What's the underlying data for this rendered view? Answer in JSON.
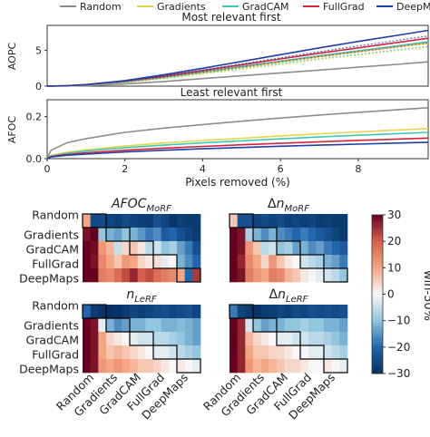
{
  "legend": {
    "entries": [
      {
        "name": "Random",
        "color": "#8c8c8c"
      },
      {
        "name": "Gradients",
        "color": "#e8d44d"
      },
      {
        "name": "GradCAM",
        "color": "#3ec8b8"
      },
      {
        "name": "FullGrad",
        "color": "#d6213a"
      },
      {
        "name": "DeepMaps",
        "color": "#1f3fa8"
      }
    ]
  },
  "colorbar": {
    "label": "win-50%",
    "ticks": [
      "30",
      "20",
      "10",
      "0",
      "−10",
      "−20",
      "−30"
    ],
    "range": [
      -30,
      30
    ],
    "colormap": "RdBu_r"
  },
  "chart_data": [
    {
      "type": "line",
      "title": "Most relevant first",
      "ylabel": "AOPC",
      "xlabel": "",
      "xlim": [
        0,
        9.8
      ],
      "ylim": [
        0,
        8.5
      ],
      "yticks": [
        "0",
        "5"
      ],
      "x": [
        0,
        0.5,
        1,
        2,
        3,
        4,
        5,
        6,
        7,
        8,
        9,
        9.8
      ],
      "series": [
        {
          "name": "Random",
          "values": [
            0,
            0.02,
            0.08,
            0.3,
            0.65,
            1.05,
            1.45,
            1.85,
            2.25,
            2.65,
            3.05,
            3.4
          ]
        },
        {
          "name": "Gradients",
          "values": [
            0,
            0.04,
            0.15,
            0.55,
            1.15,
            1.85,
            2.6,
            3.35,
            4.1,
            4.8,
            5.5,
            6.0
          ]
        },
        {
          "name": "GradCAM",
          "values": [
            0,
            0.05,
            0.17,
            0.6,
            1.25,
            2.0,
            2.75,
            3.5,
            4.25,
            4.95,
            5.65,
            6.2
          ]
        },
        {
          "name": "FullGrad",
          "values": [
            0,
            0.05,
            0.2,
            0.7,
            1.4,
            2.2,
            3.0,
            3.8,
            4.6,
            5.35,
            6.1,
            6.7
          ]
        },
        {
          "name": "DeepMaps",
          "values": [
            0,
            0.06,
            0.22,
            0.78,
            1.6,
            2.5,
            3.45,
            4.4,
            5.35,
            6.25,
            7.1,
            7.8
          ]
        }
      ]
    },
    {
      "type": "line",
      "title": "Least relevant first",
      "ylabel": "AFOC",
      "xlabel": "Pixels removed (%)",
      "xlim": [
        0,
        9.8
      ],
      "ylim": [
        0,
        0.28
      ],
      "xticks": [
        "0",
        "2",
        "4",
        "6",
        "8"
      ],
      "yticks": [
        "0.0",
        "0.2"
      ],
      "x": [
        0,
        0.1,
        0.5,
        1,
        2,
        3,
        4,
        5,
        6,
        7,
        8,
        9,
        9.8
      ],
      "series": [
        {
          "name": "Random",
          "values": [
            0,
            0.04,
            0.075,
            0.095,
            0.125,
            0.145,
            0.162,
            0.178,
            0.193,
            0.207,
            0.22,
            0.232,
            0.242
          ]
        },
        {
          "name": "Gradients",
          "values": [
            0,
            0.015,
            0.03,
            0.042,
            0.06,
            0.074,
            0.086,
            0.097,
            0.108,
            0.118,
            0.127,
            0.136,
            0.143
          ]
        },
        {
          "name": "GradCAM",
          "values": [
            0,
            0.013,
            0.026,
            0.036,
            0.052,
            0.064,
            0.075,
            0.085,
            0.094,
            0.103,
            0.111,
            0.119,
            0.125
          ]
        },
        {
          "name": "FullGrad",
          "values": [
            0,
            0.01,
            0.02,
            0.028,
            0.04,
            0.05,
            0.058,
            0.066,
            0.073,
            0.08,
            0.087,
            0.093,
            0.098
          ]
        },
        {
          "name": "DeepMaps",
          "values": [
            0,
            0.008,
            0.016,
            0.022,
            0.032,
            0.04,
            0.047,
            0.053,
            0.059,
            0.064,
            0.069,
            0.074,
            0.078
          ]
        }
      ]
    },
    {
      "type": "heatmap",
      "title": "AFOC_MoRF",
      "title_main": "AFOC",
      "title_sub": "MoRF",
      "title_prefix": "",
      "row_labels": [
        "Random",
        "Gradients",
        "GradCAM",
        "FullGrad",
        "DeepMaps"
      ],
      "col_labels": [],
      "values": [
        [
          10,
          -25,
          -25,
          -26,
          -27,
          -25,
          -26,
          -27,
          -28,
          -24,
          -26,
          -29,
          -27,
          -28,
          -28
        ],
        [
          28,
          30,
          -10,
          -12,
          -14,
          -10,
          -12,
          -15,
          -18,
          -16,
          -22,
          -20,
          -24,
          -26,
          -28
        ],
        [
          30,
          29,
          12,
          8,
          -5,
          4,
          6,
          2,
          -6,
          -4,
          -10,
          -8,
          -14,
          -18,
          -24
        ],
        [
          30,
          28,
          14,
          10,
          6,
          12,
          10,
          4,
          2,
          3,
          -2,
          0,
          -12,
          -16,
          -20
        ],
        [
          30,
          30,
          16,
          14,
          18,
          22,
          26,
          20,
          22,
          18,
          16,
          14,
          10,
          -20,
          24
        ]
      ]
    },
    {
      "type": "heatmap",
      "title": "Δn_MoRF",
      "title_main": "n",
      "title_sub": "MoRF",
      "title_prefix": "Δ",
      "row_labels": [],
      "col_labels": [],
      "values": [
        [
          6,
          -24,
          -24,
          -26,
          -25,
          -26,
          -25,
          -27,
          -26,
          -27,
          -26,
          -28,
          -27,
          -28,
          -28
        ],
        [
          30,
          28,
          -8,
          -12,
          -16,
          -12,
          -16,
          -18,
          -20,
          -18,
          -20,
          -22,
          -24,
          -26,
          -28
        ],
        [
          30,
          28,
          12,
          6,
          -6,
          -4,
          -10,
          -8,
          -14,
          -12,
          -16,
          -14,
          -18,
          -20,
          -22
        ],
        [
          30,
          26,
          14,
          10,
          4,
          12,
          6,
          2,
          0,
          -4,
          -6,
          -8,
          -12,
          -14,
          -18
        ],
        [
          30,
          28,
          16,
          12,
          10,
          16,
          14,
          8,
          6,
          2,
          0,
          -2,
          -4,
          -6,
          -10
        ]
      ]
    },
    {
      "type": "heatmap",
      "title": "n_LeRF",
      "title_main": "n",
      "title_sub": "LeRF",
      "title_prefix": "",
      "row_labels": [
        "Random",
        "Gradients",
        "GradCAM",
        "FullGrad",
        "DeepMaps"
      ],
      "col_labels": [
        "Random",
        "Gradients",
        "GradCAM",
        "FullGrad",
        "DeepMaps"
      ],
      "values": [
        [
          -20,
          -28,
          -29,
          -30,
          -29,
          -28,
          -26,
          -27,
          -26,
          -25,
          -24,
          -26,
          -25,
          -24,
          -26
        ],
        [
          30,
          28,
          -2,
          -12,
          -16,
          -14,
          -12,
          -12,
          -10,
          -10,
          -12,
          -12,
          -11,
          -12,
          -14
        ],
        [
          30,
          28,
          10,
          4,
          2,
          0,
          -2,
          -4,
          -4,
          -6,
          -6,
          -8,
          -10,
          -12,
          -14
        ],
        [
          30,
          28,
          10,
          6,
          8,
          6,
          4,
          2,
          0,
          -2,
          -2,
          -4,
          -6,
          -8,
          -10
        ],
        [
          30,
          28,
          12,
          10,
          12,
          10,
          8,
          6,
          6,
          4,
          2,
          0,
          2,
          0,
          -2
        ]
      ]
    },
    {
      "type": "heatmap",
      "title": "Δn_LeRF",
      "title_main": "n",
      "title_sub": "LeRF",
      "title_prefix": "Δ",
      "row_labels": [],
      "col_labels": [
        "Random",
        "Gradients",
        "GradCAM",
        "FullGrad",
        "DeepMaps"
      ],
      "values": [
        [
          -18,
          -26,
          -28,
          -29,
          -28,
          -27,
          -26,
          -27,
          -25,
          -26,
          -24,
          -25,
          -24,
          -25,
          -24
        ],
        [
          30,
          26,
          -4,
          -10,
          -14,
          -12,
          -12,
          -10,
          -10,
          -8,
          -10,
          -10,
          -12,
          -12,
          -14
        ],
        [
          30,
          26,
          8,
          4,
          2,
          0,
          -2,
          -2,
          -4,
          -4,
          -6,
          -6,
          -8,
          -10,
          -12
        ],
        [
          30,
          26,
          10,
          6,
          6,
          4,
          4,
          2,
          0,
          0,
          -2,
          -2,
          -4,
          -6,
          -8
        ],
        [
          30,
          26,
          12,
          8,
          10,
          8,
          6,
          4,
          4,
          2,
          0,
          0,
          2,
          0,
          -2
        ]
      ]
    }
  ]
}
